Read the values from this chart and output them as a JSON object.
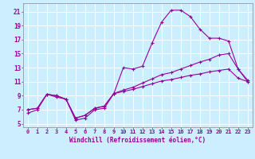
{
  "xlabel": "Windchill (Refroidissement éolien,°C)",
  "bg_color": "#cceeff",
  "line_color": "#990099",
  "grid_color": "#ffffff",
  "x_ticks": [
    0,
    1,
    2,
    3,
    4,
    5,
    6,
    7,
    8,
    9,
    10,
    11,
    12,
    13,
    14,
    15,
    16,
    17,
    18,
    19,
    20,
    21,
    22,
    23
  ],
  "y_ticks": [
    5,
    7,
    9,
    11,
    13,
    15,
    17,
    19,
    21
  ],
  "xlim": [
    -0.5,
    23.5
  ],
  "ylim": [
    4.5,
    22.2
  ],
  "line1_x": [
    0,
    1,
    2,
    3,
    4,
    5,
    6,
    7,
    8,
    9,
    10,
    11,
    12,
    13,
    14,
    15,
    16,
    17,
    18,
    19,
    20,
    21,
    22,
    23
  ],
  "line1_y": [
    6.5,
    7.0,
    9.2,
    8.8,
    8.5,
    5.5,
    5.8,
    7.0,
    7.2,
    9.3,
    13.0,
    12.8,
    13.2,
    16.5,
    19.5,
    21.2,
    21.2,
    20.3,
    18.5,
    17.2,
    17.2,
    16.8,
    12.8,
    11.0
  ],
  "line2_x": [
    0,
    1,
    2,
    3,
    4,
    5,
    6,
    7,
    8,
    9,
    10,
    11,
    12,
    13,
    14,
    15,
    16,
    17,
    18,
    19,
    20,
    21,
    22,
    23
  ],
  "line2_y": [
    7.0,
    7.2,
    9.2,
    9.0,
    8.5,
    5.8,
    6.2,
    7.2,
    7.5,
    9.3,
    9.8,
    10.2,
    10.8,
    11.4,
    12.0,
    12.3,
    12.8,
    13.3,
    13.8,
    14.2,
    14.8,
    15.0,
    12.8,
    11.2
  ],
  "line3_x": [
    0,
    1,
    2,
    3,
    4,
    5,
    6,
    7,
    8,
    9,
    10,
    11,
    12,
    13,
    14,
    15,
    16,
    17,
    18,
    19,
    20,
    21,
    22,
    23
  ],
  "line3_y": [
    7.0,
    7.2,
    9.2,
    9.0,
    8.5,
    5.8,
    6.2,
    7.2,
    7.5,
    9.3,
    9.6,
    9.9,
    10.3,
    10.7,
    11.1,
    11.3,
    11.6,
    11.9,
    12.1,
    12.4,
    12.6,
    12.8,
    11.5,
    11.0
  ],
  "marker": "+",
  "marker_size": 3,
  "linewidth": 0.8,
  "tick_fontsize": 5.0,
  "xlabel_fontsize": 5.5
}
